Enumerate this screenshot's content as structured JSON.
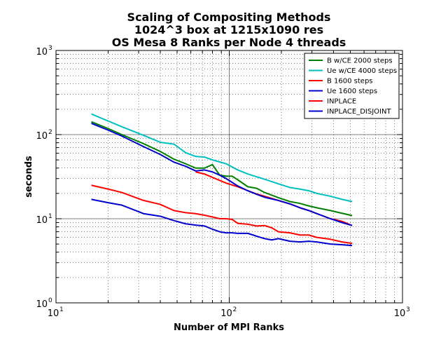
{
  "chart_data": {
    "type": "line",
    "title_lines": [
      "Scaling of Compositing Methods",
      "1024^3 box at 1215x1090 res",
      "OS Mesa 8 Ranks per Node 4 threads"
    ],
    "xlabel": "Number of MPI Ranks",
    "ylabel": "seconds",
    "xscale": "log",
    "yscale": "log",
    "xlim": [
      10,
      1000
    ],
    "ylim": [
      1,
      1000
    ],
    "grid": true,
    "legend_placement": "top-right",
    "x_ticks": [
      {
        "base": "10",
        "exp": "1"
      },
      {
        "base": "10",
        "exp": "2"
      },
      {
        "base": "10",
        "exp": "3"
      }
    ],
    "y_ticks": [
      {
        "base": "10",
        "exp": "0"
      },
      {
        "base": "10",
        "exp": "1"
      },
      {
        "base": "10",
        "exp": "2"
      },
      {
        "base": "10",
        "exp": "3"
      }
    ],
    "series": [
      {
        "name": "B w/CE 2000 steps",
        "color": "#008000",
        "x": [
          16,
          20,
          24,
          32,
          40,
          48,
          56,
          64,
          72,
          80,
          88,
          96,
          104,
          112,
          128,
          144,
          160,
          192,
          224,
          256,
          288,
          320,
          384,
          448,
          512
        ],
        "y": [
          142,
          118,
          100,
          78,
          63,
          51,
          45,
          40,
          40,
          44,
          33,
          32,
          32,
          29,
          24,
          23,
          20.5,
          17.8,
          16,
          15.2,
          14.2,
          13.5,
          12.5,
          11.6,
          10.9
        ]
      },
      {
        "name": "Ue w/CE 4000 steps",
        "color": "#00bfbf",
        "x": [
          16,
          20,
          24,
          32,
          40,
          48,
          56,
          64,
          72,
          80,
          96,
          112,
          128,
          144,
          160,
          192,
          224,
          256,
          288,
          320,
          384,
          448,
          512
        ],
        "y": [
          176,
          145,
          124,
          98,
          81,
          77,
          61,
          55,
          54,
          50,
          45,
          38,
          34,
          31.5,
          29.5,
          26,
          23.5,
          22.5,
          21.5,
          20,
          18.5,
          17,
          16
        ]
      },
      {
        "name": "B 1600 steps",
        "color": "#ff0000",
        "x": [
          16,
          20,
          24,
          32,
          40,
          48,
          56,
          64,
          72,
          80,
          88,
          96,
          104,
          112,
          128,
          144,
          160,
          176,
          192,
          224,
          256,
          288,
          320,
          384,
          448,
          512
        ],
        "y": [
          25,
          22.5,
          20.5,
          16.5,
          14.8,
          12.5,
          11.8,
          11.5,
          11,
          10.5,
          10,
          10,
          9.8,
          8.8,
          8.6,
          8.2,
          8.3,
          7.8,
          7,
          6.8,
          6.4,
          6.4,
          6,
          5.7,
          5.3,
          5.1
        ]
      },
      {
        "name": "Ue 1600 steps",
        "color": "#0000cc",
        "x": [
          16,
          20,
          24,
          32,
          40,
          48,
          56,
          64,
          72,
          80,
          88,
          96,
          104,
          112,
          128,
          144,
          160,
          176,
          192,
          224,
          256,
          288,
          320,
          384,
          448,
          512
        ],
        "y": [
          17,
          15.5,
          14.5,
          11.5,
          10.7,
          9.5,
          8.7,
          8.4,
          8.2,
          7.5,
          7,
          6.8,
          6.8,
          6.7,
          6.7,
          6.2,
          5.8,
          5.6,
          5.8,
          5.4,
          5.3,
          5.4,
          5.3,
          5,
          4.9,
          4.8
        ]
      },
      {
        "name": "INPLACE",
        "color": "#ff0000",
        "x": [
          64,
          72,
          80,
          96,
          112,
          128,
          144,
          160,
          192,
          224,
          256,
          288,
          320,
          384,
          448,
          512
        ],
        "y": [
          36,
          34,
          31,
          26.5,
          24,
          21.5,
          19.7,
          18.5,
          16.5,
          15,
          13.5,
          12.5,
          11.5,
          10,
          9.3,
          8.3
        ]
      },
      {
        "name": "INPLACE_DISJOINT",
        "color": "#0000cc",
        "x": [
          16,
          20,
          24,
          32,
          40,
          48,
          56,
          64,
          72,
          80,
          88,
          96,
          104,
          112,
          128,
          144,
          160,
          192,
          224,
          256,
          288,
          320,
          384,
          448,
          512
        ],
        "y": [
          136,
          113,
          96,
          72,
          58,
          47,
          42,
          37,
          38,
          36,
          33,
          30,
          27,
          24.5,
          21.5,
          19.5,
          18,
          16.5,
          15,
          13.5,
          12.5,
          11.5,
          10,
          9,
          8.3
        ]
      }
    ]
  }
}
